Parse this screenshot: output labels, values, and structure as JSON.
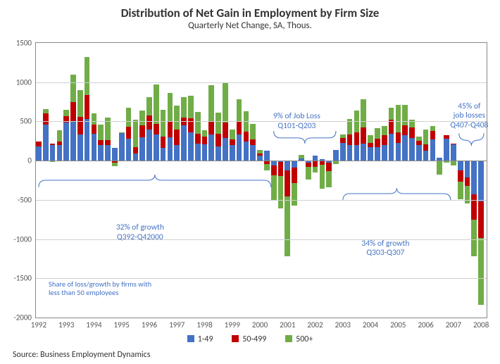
{
  "title": "Distribution of Net Gain in Employment by Firm Size",
  "subtitle": "Quarterly Net Change, SA, Thous.",
  "source": "Source: Business Employment Dynamics",
  "colors": {
    "s1": "#4472c4",
    "s2": "#c00000",
    "s3": "#70ad47",
    "grid": "#d0d0d0",
    "axis": "#888888",
    "annot": "#4472c4",
    "bg": "#ffffff"
  },
  "y": {
    "min": -2000,
    "max": 1500,
    "step": 500
  },
  "x_labels": [
    "1992",
    "1993",
    "1994",
    "1995",
    "1996",
    "1997",
    "1998",
    "1999",
    "2000",
    "2001",
    "2002",
    "2003",
    "2004",
    "2005",
    "2006",
    "2007",
    "2008"
  ],
  "legend": [
    {
      "label": "1-49",
      "color": "#4472c4"
    },
    {
      "label": "50-499",
      "color": "#c00000"
    },
    {
      "label": "500+",
      "color": "#70ad47"
    }
  ],
  "annotations": {
    "a1": {
      "line1": "32% of growth",
      "line2": "Q392-Q42000"
    },
    "a2": {
      "line1": "9% of Job Loss",
      "line2": "Q101-Q203"
    },
    "a3": {
      "line1": "34% of growth",
      "line2": "Q303-Q307"
    },
    "a4": {
      "line1": "45% of",
      "line2": "job losses",
      "line3": "Q407-Q408"
    },
    "note": "Share of loss/growth by firms with\nless than 50 employees"
  },
  "series": [
    {
      "y": 1992.5,
      "s1": 180,
      "s2": 60,
      "s3": 0
    },
    {
      "y": 1992.75,
      "s1": 460,
      "s2": 140,
      "s3": 60
    },
    {
      "y": 1993.0,
      "s1": 200,
      "s2": 20,
      "s3": -20
    },
    {
      "y": 1993.25,
      "s1": 200,
      "s2": 40,
      "s3": 150
    },
    {
      "y": 1993.5,
      "s1": 490,
      "s2": 80,
      "s3": 80
    },
    {
      "y": 1993.75,
      "s1": 500,
      "s2": 250,
      "s3": 350
    },
    {
      "y": 1994.0,
      "s1": 330,
      "s2": 230,
      "s3": 340
    },
    {
      "y": 1994.25,
      "s1": 530,
      "s2": 310,
      "s3": 480
    },
    {
      "y": 1994.5,
      "s1": 340,
      "s2": 120,
      "s3": 140
    },
    {
      "y": 1994.75,
      "s1": 200,
      "s2": 60,
      "s3": 200
    },
    {
      "y": 1995.0,
      "s1": 200,
      "s2": 60,
      "s3": 290
    },
    {
      "y": 1995.25,
      "s1": 160,
      "s2": -30,
      "s3": -40
    },
    {
      "y": 1995.5,
      "s1": 350,
      "s2": -10,
      "s3": 10
    },
    {
      "y": 1995.75,
      "s1": 280,
      "s2": 150,
      "s3": 240
    },
    {
      "y": 1996.0,
      "s1": 90,
      "s2": 80,
      "s3": 350
    },
    {
      "y": 1996.25,
      "s1": 300,
      "s2": 150,
      "s3": 190
    },
    {
      "y": 1996.5,
      "s1": 400,
      "s2": 180,
      "s3": 230
    },
    {
      "y": 1996.75,
      "s1": 330,
      "s2": 140,
      "s3": 500
    },
    {
      "y": 1997.0,
      "s1": 160,
      "s2": 150,
      "s3": 340
    },
    {
      "y": 1997.25,
      "s1": 300,
      "s2": 200,
      "s3": 360
    },
    {
      "y": 1997.5,
      "s1": 200,
      "s2": 200,
      "s3": 300
    },
    {
      "y": 1997.75,
      "s1": 450,
      "s2": 100,
      "s3": 260
    },
    {
      "y": 1998.0,
      "s1": 360,
      "s2": 180,
      "s3": 290
    },
    {
      "y": 1998.25,
      "s1": 220,
      "s2": 120,
      "s3": 280
    },
    {
      "y": 1998.5,
      "s1": 210,
      "s2": 100,
      "s3": 80
    },
    {
      "y": 1998.75,
      "s1": 330,
      "s2": 170,
      "s3": 460
    },
    {
      "y": 1999.0,
      "s1": 180,
      "s2": 160,
      "s3": 270
    },
    {
      "y": 1999.25,
      "s1": 290,
      "s2": 200,
      "s3": 500
    },
    {
      "y": 1999.5,
      "s1": 200,
      "s2": 70,
      "s3": 130
    },
    {
      "y": 1999.75,
      "s1": 330,
      "s2": 170,
      "s3": 280
    },
    {
      "y": 2000.0,
      "s1": 240,
      "s2": 130,
      "s3": 260
    },
    {
      "y": 2000.25,
      "s1": 200,
      "s2": 70,
      "s3": 200
    },
    {
      "y": 2000.5,
      "s1": 60,
      "s2": 30,
      "s3": 50
    },
    {
      "y": 2000.75,
      "s1": 130,
      "s2": -40,
      "s3": -80
    },
    {
      "y": 2001.0,
      "s1": -60,
      "s2": -130,
      "s3": -310
    },
    {
      "y": 2001.25,
      "s1": -20,
      "s2": -180,
      "s3": -410
    },
    {
      "y": 2001.5,
      "s1": -120,
      "s2": -340,
      "s3": -760
    },
    {
      "y": 2001.75,
      "s1": -90,
      "s2": -200,
      "s3": -280
    },
    {
      "y": 2002.0,
      "s1": 30,
      "s2": -10,
      "s3": 40
    },
    {
      "y": 2002.25,
      "s1": -30,
      "s2": -50,
      "s3": -160
    },
    {
      "y": 2002.5,
      "s1": 60,
      "s2": -80,
      "s3": -70
    },
    {
      "y": 2002.75,
      "s1": 20,
      "s2": -50,
      "s3": -310
    },
    {
      "y": 2003.0,
      "s1": -30,
      "s2": -100,
      "s3": -210
    },
    {
      "y": 2003.25,
      "s1": 140,
      "s2": 0,
      "s3": -40
    },
    {
      "y": 2003.5,
      "s1": 230,
      "s2": 60,
      "s3": 40
    },
    {
      "y": 2003.75,
      "s1": 200,
      "s2": 130,
      "s3": 200
    },
    {
      "y": 2004.0,
      "s1": 200,
      "s2": 160,
      "s3": 280
    },
    {
      "y": 2004.25,
      "s1": 220,
      "s2": 200,
      "s3": 360
    },
    {
      "y": 2004.5,
      "s1": 170,
      "s2": 60,
      "s3": 90
    },
    {
      "y": 2004.75,
      "s1": 170,
      "s2": 110,
      "s3": 130
    },
    {
      "y": 2005.0,
      "s1": 200,
      "s2": 120,
      "s3": 120
    },
    {
      "y": 2005.25,
      "s1": 340,
      "s2": 180,
      "s3": 150
    },
    {
      "y": 2005.5,
      "s1": 230,
      "s2": 130,
      "s3": 350
    },
    {
      "y": 2005.75,
      "s1": 320,
      "s2": 130,
      "s3": 260
    },
    {
      "y": 2006.0,
      "s1": 290,
      "s2": 130,
      "s3": 100
    },
    {
      "y": 2006.25,
      "s1": 200,
      "s2": 50,
      "s3": 60
    },
    {
      "y": 2006.5,
      "s1": 130,
      "s2": 80,
      "s3": 190
    },
    {
      "y": 2006.75,
      "s1": 270,
      "s2": 110,
      "s3": 60
    },
    {
      "y": 2007.0,
      "s1": 40,
      "s2": -10,
      "s3": -170
    },
    {
      "y": 2007.25,
      "s1": 280,
      "s2": 40,
      "s3": -30
    },
    {
      "y": 2007.5,
      "s1": 210,
      "s2": 10,
      "s3": -60
    },
    {
      "y": 2007.75,
      "s1": -120,
      "s2": -150,
      "s3": -220
    },
    {
      "y": 2008.0,
      "s1": -210,
      "s2": -110,
      "s3": -230
    },
    {
      "y": 2008.25,
      "s1": -430,
      "s2": -320,
      "s3": -470
    },
    {
      "y": 2008.5,
      "s1": -520,
      "s2": -470,
      "s3": -850
    }
  ]
}
